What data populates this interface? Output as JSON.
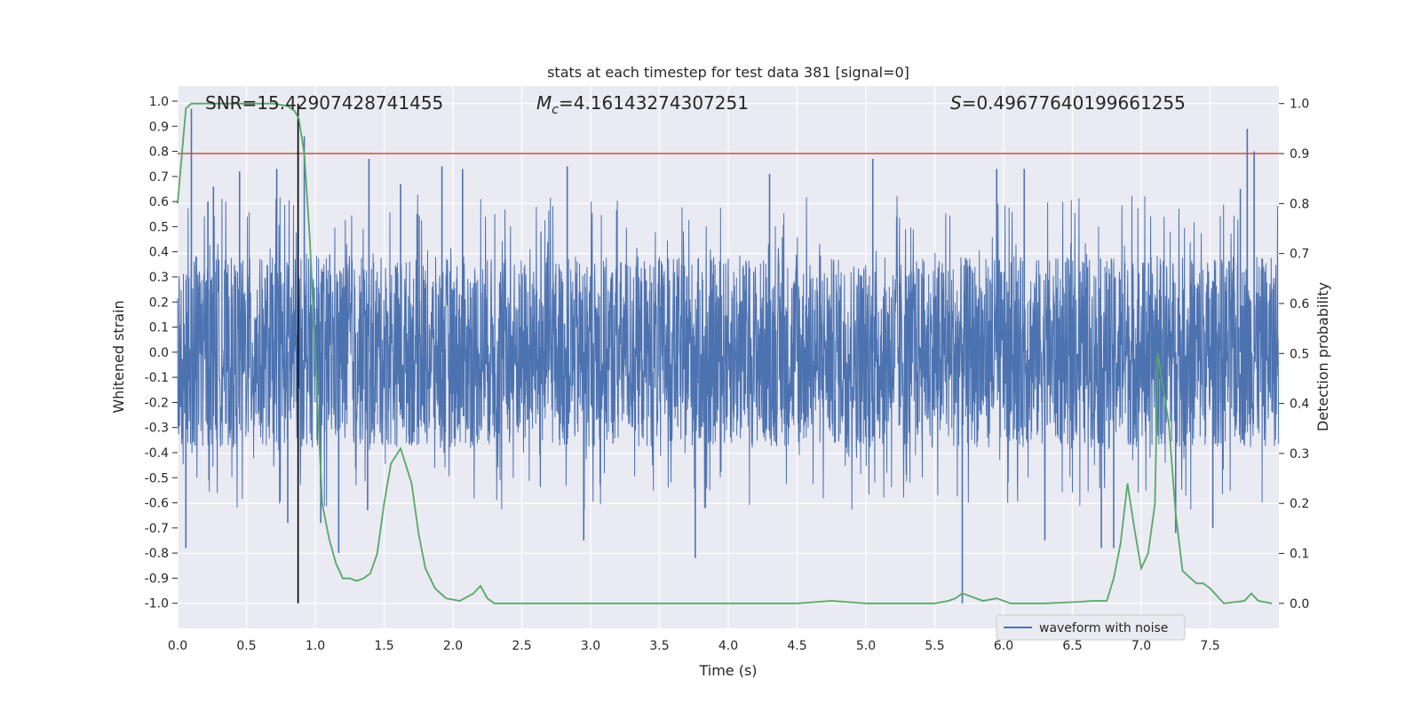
{
  "chart_data": {
    "type": "line",
    "title": "stats at each timestep for test data 381 [signal=0]",
    "xlabel": "Time (s)",
    "ylabel_left": "Whitened strain",
    "ylabel_right": "Detection probability",
    "xlim": [
      0.0,
      8.0
    ],
    "ylim_left": [
      -1.1,
      1.06
    ],
    "ylim_right": [
      -0.05,
      1.035
    ],
    "x_ticks": [
      "0.0",
      "0.5",
      "1.0",
      "1.5",
      "2.0",
      "2.5",
      "3.0",
      "3.5",
      "4.0",
      "4.5",
      "5.0",
      "5.5",
      "6.0",
      "6.5",
      "7.0",
      "7.5"
    ],
    "y_left_ticks": [
      "1.0",
      "0.9",
      "0.8",
      "0.7",
      "0.6",
      "0.5",
      "0.4",
      "0.3",
      "0.2",
      "0.1",
      "0.0",
      "-0.1",
      "-0.2",
      "-0.3",
      "-0.4",
      "-0.5",
      "-0.6",
      "-0.7",
      "-0.8",
      "-0.9",
      "-1.0"
    ],
    "y_right_ticks": [
      "0.0",
      "0.1",
      "0.2",
      "0.3",
      "0.4",
      "0.5",
      "0.6",
      "0.7",
      "0.8",
      "0.9",
      "1.0"
    ],
    "grid": true,
    "legend_position": "lower-right",
    "annotations": {
      "snr": "SNR=15.42907428741455",
      "mc_symbol": "M",
      "mc_sub": "c",
      "mc_value": "=4.16143274307251",
      "s_symbol": "S",
      "s_value": "=0.49677640199661255"
    },
    "series": [
      {
        "name": "waveform with noise",
        "axis": "left",
        "color": "#4c72b0",
        "kind": "noise",
        "envelope": [
          -0.38,
          0.38
        ],
        "peaks": [
          {
            "x": 0.1,
            "y": 0.97
          },
          {
            "x": 0.06,
            "y": -0.78
          },
          {
            "x": 0.92,
            "y": 0.86
          },
          {
            "x": 0.8,
            "y": -0.68
          },
          {
            "x": 0.26,
            "y": 0.66
          },
          {
            "x": 0.22,
            "y": 0.6
          },
          {
            "x": 0.45,
            "y": 0.72
          },
          {
            "x": 0.72,
            "y": 0.73
          },
          {
            "x": 1.17,
            "y": -0.8
          },
          {
            "x": 1.04,
            "y": -0.68
          },
          {
            "x": 1.39,
            "y": 0.77
          },
          {
            "x": 1.38,
            "y": -0.63
          },
          {
            "x": 1.62,
            "y": 0.67
          },
          {
            "x": 1.92,
            "y": 0.74
          },
          {
            "x": 2.07,
            "y": 0.73
          },
          {
            "x": 2.83,
            "y": 0.74
          },
          {
            "x": 2.95,
            "y": -0.75
          },
          {
            "x": 3.76,
            "y": -0.82
          },
          {
            "x": 4.3,
            "y": 0.71
          },
          {
            "x": 5.05,
            "y": 0.77
          },
          {
            "x": 5.7,
            "y": -1.0
          },
          {
            "x": 5.95,
            "y": 0.73
          },
          {
            "x": 6.15,
            "y": 0.73
          },
          {
            "x": 6.3,
            "y": -0.75
          },
          {
            "x": 6.71,
            "y": -0.78
          },
          {
            "x": 6.8,
            "y": -0.78
          },
          {
            "x": 7.25,
            "y": -0.72
          },
          {
            "x": 7.77,
            "y": 0.89
          },
          {
            "x": 7.82,
            "y": 0.8
          },
          {
            "x": 7.72,
            "y": 0.65
          },
          {
            "x": 7.52,
            "y": -0.7
          }
        ]
      },
      {
        "name": "",
        "axis": "right",
        "color": "#55a868",
        "kind": "line",
        "x": [
          0.0,
          0.06,
          0.1,
          0.2,
          0.3,
          0.5,
          0.7,
          0.8,
          0.85,
          0.88,
          0.92,
          0.96,
          1.0,
          1.05,
          1.1,
          1.15,
          1.2,
          1.25,
          1.3,
          1.35,
          1.4,
          1.45,
          1.5,
          1.55,
          1.62,
          1.7,
          1.75,
          1.8,
          1.87,
          1.95,
          2.05,
          2.15,
          2.2,
          2.25,
          2.3,
          2.5,
          2.8,
          3.0,
          3.5,
          4.0,
          4.5,
          4.75,
          5.0,
          5.5,
          5.6,
          5.65,
          5.7,
          5.85,
          5.95,
          6.05,
          6.3,
          6.55,
          6.65,
          6.75,
          6.8,
          6.85,
          6.9,
          6.95,
          7.0,
          7.05,
          7.1,
          7.12,
          7.2,
          7.25,
          7.3,
          7.4,
          7.45,
          7.5,
          7.6,
          7.75,
          7.8,
          7.85,
          7.95
        ],
        "y": [
          0.8,
          0.99,
          1.0,
          1.0,
          1.0,
          1.0,
          1.0,
          0.995,
          0.985,
          0.97,
          0.9,
          0.73,
          0.5,
          0.2,
          0.13,
          0.08,
          0.05,
          0.05,
          0.045,
          0.05,
          0.06,
          0.1,
          0.2,
          0.28,
          0.31,
          0.24,
          0.14,
          0.07,
          0.03,
          0.01,
          0.005,
          0.02,
          0.035,
          0.01,
          0.0,
          0.0,
          0.0,
          0.0,
          0.0,
          0.0,
          0.0,
          0.005,
          0.0,
          0.0,
          0.005,
          0.01,
          0.02,
          0.005,
          0.01,
          0.0,
          0.0,
          0.003,
          0.005,
          0.005,
          0.05,
          0.12,
          0.24,
          0.15,
          0.07,
          0.1,
          0.2,
          0.5,
          0.36,
          0.18,
          0.065,
          0.04,
          0.04,
          0.03,
          0.0,
          0.005,
          0.02,
          0.005,
          0.0
        ]
      }
    ],
    "threshold": {
      "axis": "right",
      "y": 0.9,
      "color": "#c44e52"
    },
    "marker_time": {
      "x": 0.875,
      "color": "#000000"
    }
  }
}
